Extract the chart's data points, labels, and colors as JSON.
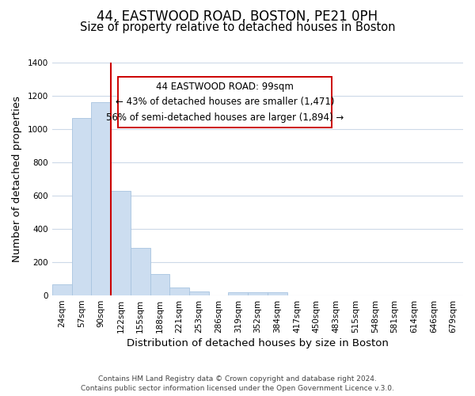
{
  "title": "44, EASTWOOD ROAD, BOSTON, PE21 0PH",
  "subtitle": "Size of property relative to detached houses in Boston",
  "xlabel": "Distribution of detached houses by size in Boston",
  "ylabel": "Number of detached properties",
  "footer_line1": "Contains HM Land Registry data © Crown copyright and database right 2024.",
  "footer_line2": "Contains public sector information licensed under the Open Government Licence v.3.0.",
  "bin_labels": [
    "24sqm",
    "57sqm",
    "90sqm",
    "122sqm",
    "155sqm",
    "188sqm",
    "221sqm",
    "253sqm",
    "286sqm",
    "319sqm",
    "352sqm",
    "384sqm",
    "417sqm",
    "450sqm",
    "483sqm",
    "515sqm",
    "548sqm",
    "581sqm",
    "614sqm",
    "646sqm",
    "679sqm"
  ],
  "bar_values": [
    65,
    1065,
    1160,
    630,
    285,
    130,
    47,
    22,
    0,
    18,
    18,
    18,
    0,
    0,
    0,
    0,
    0,
    0,
    0,
    0,
    0
  ],
  "bar_color": "#ccddf0",
  "bar_edge_color": "#a8c4e0",
  "vline_color": "#cc0000",
  "vline_position": 2.5,
  "annotation_box_text": "44 EASTWOOD ROAD: 99sqm\n← 43% of detached houses are smaller (1,471)\n56% of semi-detached houses are larger (1,894) →",
  "ylim": [
    0,
    1400
  ],
  "yticks": [
    0,
    200,
    400,
    600,
    800,
    1000,
    1200,
    1400
  ],
  "bg_color": "#ffffff",
  "grid_color": "#ccd9e8",
  "title_fontsize": 12,
  "subtitle_fontsize": 10.5,
  "axis_label_fontsize": 9.5,
  "tick_fontsize": 7.5,
  "footer_fontsize": 6.5,
  "ann_fontsize": 8.5
}
